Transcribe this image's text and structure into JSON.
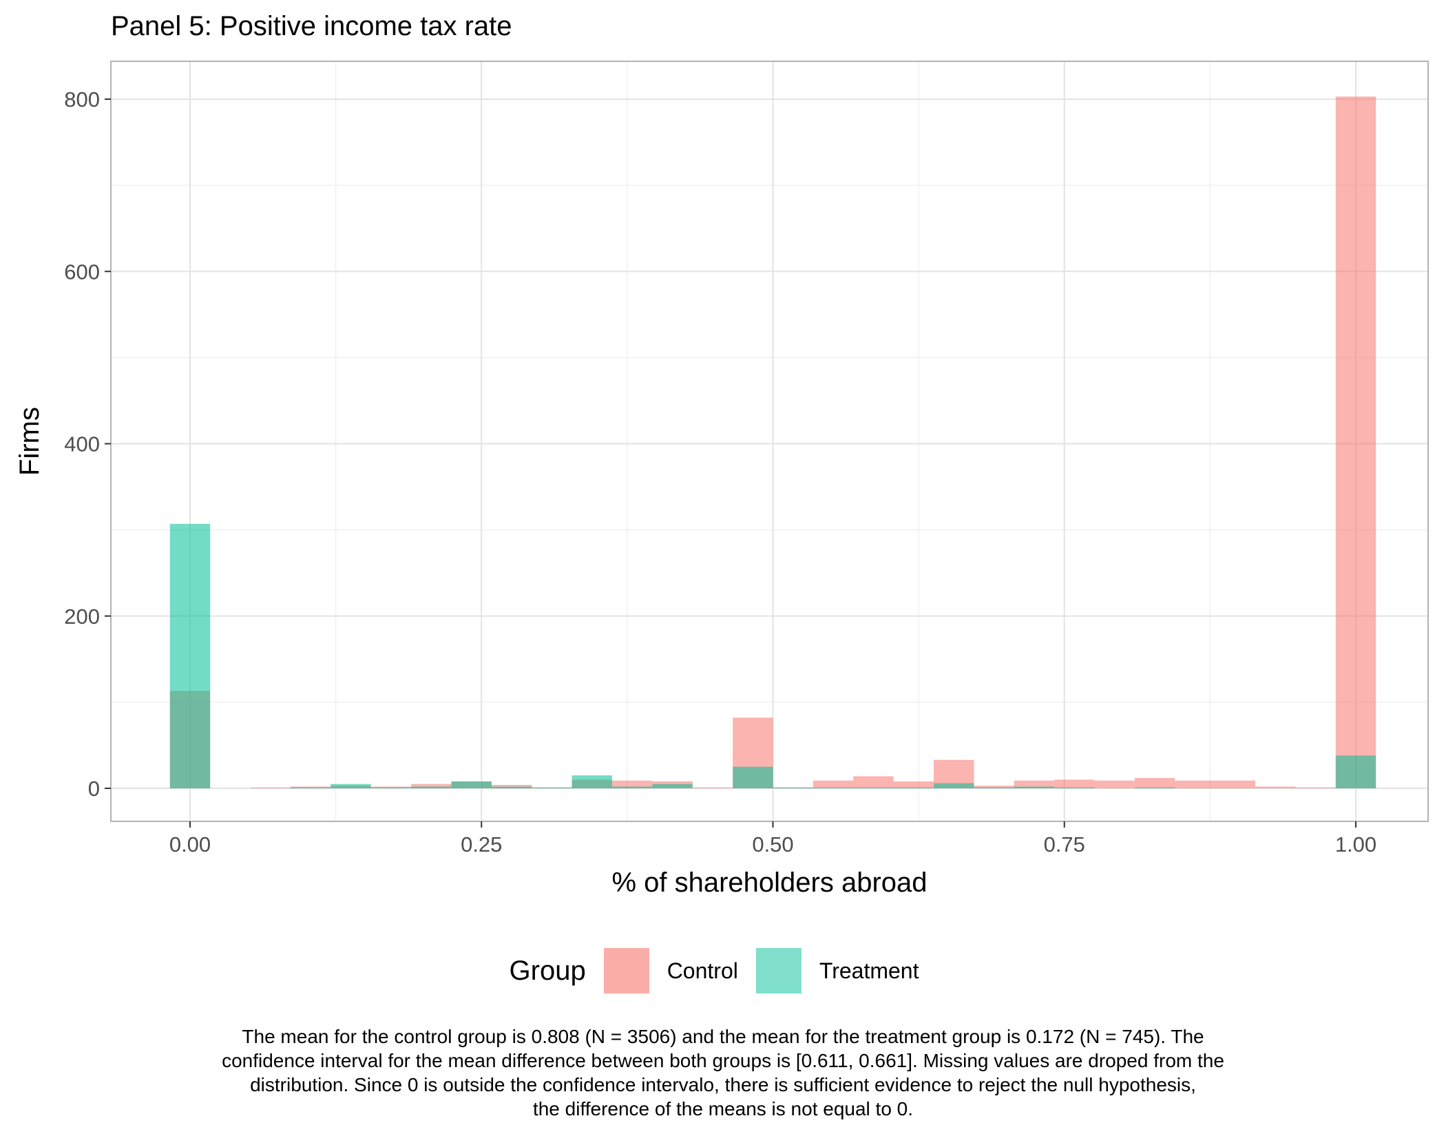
{
  "chart_data": {
    "type": "bar",
    "title": "Panel 5: Positive income tax rate",
    "xlabel": "% of shareholders abroad",
    "ylabel": "Firms",
    "xlim": [
      -0.2,
      1.2
    ],
    "ylim": [
      -40,
      840
    ],
    "x_ticks": [
      0,
      0.25,
      0.5,
      0.75,
      1
    ],
    "x_tick_labels": [
      "0.00",
      "0.25",
      "0.50",
      "0.75",
      "1.00"
    ],
    "y_ticks": [
      0,
      200,
      400,
      600,
      800
    ],
    "y_tick_labels": [
      "0",
      "200",
      "400",
      "600",
      "800"
    ],
    "grid": true,
    "bin_width": 0.0345,
    "bin_centers": [
      0,
      0.0345,
      0.069,
      0.1034,
      0.1379,
      0.1724,
      0.2069,
      0.2414,
      0.2759,
      0.3103,
      0.3448,
      0.3793,
      0.4138,
      0.4483,
      0.4828,
      0.5172,
      0.5517,
      0.5862,
      0.6207,
      0.6552,
      0.6897,
      0.7241,
      0.7586,
      0.7931,
      0.8276,
      0.8621,
      0.8966,
      0.931,
      0.9655,
      1
    ],
    "series": [
      {
        "name": "Control",
        "color": "#F8766D",
        "values": [
          113,
          0,
          1,
          2,
          3,
          2,
          5,
          8,
          4,
          1,
          10,
          9,
          8,
          1,
          82,
          1,
          9,
          14,
          8,
          33,
          3,
          9,
          10,
          9,
          12,
          9,
          9,
          2,
          1,
          803
        ]
      },
      {
        "name": "Treatment",
        "color": "#00BF96",
        "values": [
          307,
          0,
          0,
          1,
          5,
          1,
          2,
          8,
          2,
          1,
          15,
          2,
          5,
          0,
          25,
          1,
          1,
          1,
          1,
          6,
          1,
          2,
          1,
          0,
          1,
          0,
          0,
          0,
          0,
          38
        ]
      }
    ],
    "legend": {
      "title": "Group",
      "position": "bottom"
    }
  },
  "caption": {
    "lines": [
      "The mean for the control group is 0.808 (N = 3506) and the mean for the treatment group is 0.172 (N = 745). The",
      "confidence interval for the mean difference between both groups is [0.611, 0.661]. Missing values are droped from the",
      "distribution. Since 0 is outside the confidence intervalo, there is sufficient evidence to reject the null hypothesis,",
      "the difference of the means is not equal to 0."
    ]
  }
}
